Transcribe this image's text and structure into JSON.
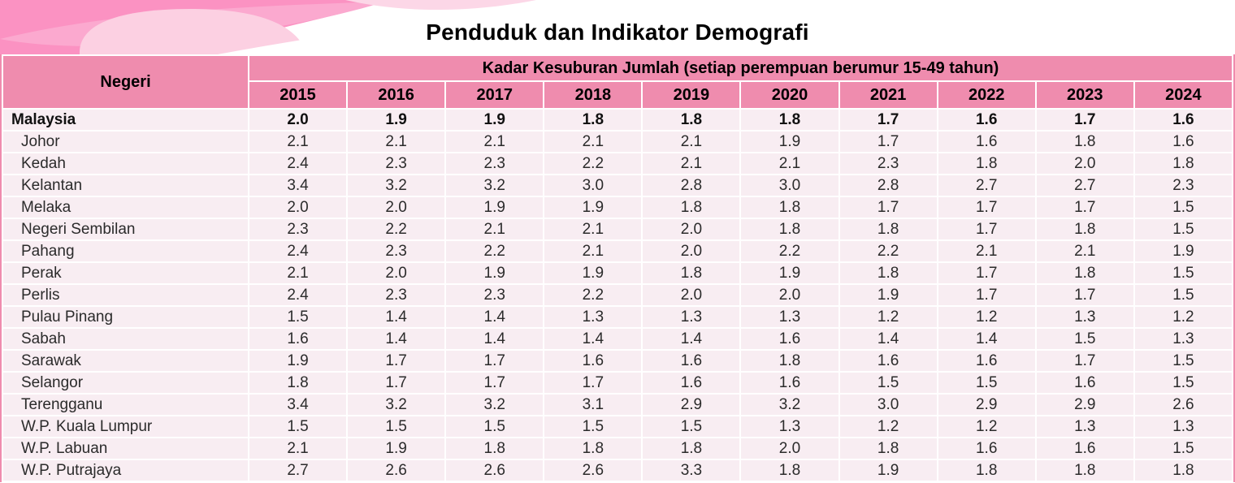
{
  "title": "Penduduk dan Indikator Demografi",
  "colors": {
    "header_pink": "#ef8cae",
    "row_pink": "#f8edf2",
    "banner_base_pink": "#fb92c2",
    "banner_mid_pink": "#fba9cf",
    "banner_light_pink": "#fcd0e2",
    "banner_petal_pink": "#fcd7e7"
  },
  "table": {
    "negeri_header": "Negeri",
    "group_header": "Kadar Kesuburan Jumlah (setiap perempuan berumur 15-49 tahun)",
    "years": [
      "2015",
      "2016",
      "2017",
      "2018",
      "2019",
      "2020",
      "2021",
      "2022",
      "2023",
      "2024"
    ],
    "rows": [
      {
        "negeri": "Malaysia",
        "total": true,
        "values": [
          "2.0",
          "1.9",
          "1.9",
          "1.8",
          "1.8",
          "1.8",
          "1.7",
          "1.6",
          "1.7",
          "1.6"
        ]
      },
      {
        "negeri": "Johor",
        "total": false,
        "values": [
          "2.1",
          "2.1",
          "2.1",
          "2.1",
          "2.1",
          "1.9",
          "1.7",
          "1.6",
          "1.8",
          "1.6"
        ]
      },
      {
        "negeri": "Kedah",
        "total": false,
        "values": [
          "2.4",
          "2.3",
          "2.3",
          "2.2",
          "2.1",
          "2.1",
          "2.3",
          "1.8",
          "2.0",
          "1.8"
        ]
      },
      {
        "negeri": "Kelantan",
        "total": false,
        "values": [
          "3.4",
          "3.2",
          "3.2",
          "3.0",
          "2.8",
          "3.0",
          "2.8",
          "2.7",
          "2.7",
          "2.3"
        ]
      },
      {
        "negeri": "Melaka",
        "total": false,
        "values": [
          "2.0",
          "2.0",
          "1.9",
          "1.9",
          "1.8",
          "1.8",
          "1.7",
          "1.7",
          "1.7",
          "1.5"
        ]
      },
      {
        "negeri": "Negeri Sembilan",
        "total": false,
        "values": [
          "2.3",
          "2.2",
          "2.1",
          "2.1",
          "2.0",
          "1.8",
          "1.8",
          "1.7",
          "1.8",
          "1.5"
        ]
      },
      {
        "negeri": "Pahang",
        "total": false,
        "values": [
          "2.4",
          "2.3",
          "2.2",
          "2.1",
          "2.0",
          "2.2",
          "2.2",
          "2.1",
          "2.1",
          "1.9"
        ]
      },
      {
        "negeri": "Perak",
        "total": false,
        "values": [
          "2.1",
          "2.0",
          "1.9",
          "1.9",
          "1.8",
          "1.9",
          "1.8",
          "1.7",
          "1.8",
          "1.5"
        ]
      },
      {
        "negeri": "Perlis",
        "total": false,
        "values": [
          "2.4",
          "2.3",
          "2.3",
          "2.2",
          "2.0",
          "2.0",
          "1.9",
          "1.7",
          "1.7",
          "1.5"
        ]
      },
      {
        "negeri": "Pulau Pinang",
        "total": false,
        "values": [
          "1.5",
          "1.4",
          "1.4",
          "1.3",
          "1.3",
          "1.3",
          "1.2",
          "1.2",
          "1.3",
          "1.2"
        ]
      },
      {
        "negeri": "Sabah",
        "total": false,
        "values": [
          "1.6",
          "1.4",
          "1.4",
          "1.4",
          "1.4",
          "1.6",
          "1.4",
          "1.4",
          "1.5",
          "1.3"
        ]
      },
      {
        "negeri": "Sarawak",
        "total": false,
        "values": [
          "1.9",
          "1.7",
          "1.7",
          "1.6",
          "1.6",
          "1.8",
          "1.6",
          "1.6",
          "1.7",
          "1.5"
        ]
      },
      {
        "negeri": "Selangor",
        "total": false,
        "values": [
          "1.8",
          "1.7",
          "1.7",
          "1.7",
          "1.6",
          "1.6",
          "1.5",
          "1.5",
          "1.6",
          "1.5"
        ]
      },
      {
        "negeri": "Terengganu",
        "total": false,
        "values": [
          "3.4",
          "3.2",
          "3.2",
          "3.1",
          "2.9",
          "3.2",
          "3.0",
          "2.9",
          "2.9",
          "2.6"
        ]
      },
      {
        "negeri": "W.P. Kuala Lumpur",
        "total": false,
        "values": [
          "1.5",
          "1.5",
          "1.5",
          "1.5",
          "1.5",
          "1.3",
          "1.2",
          "1.2",
          "1.3",
          "1.3"
        ]
      },
      {
        "negeri": "W.P. Labuan",
        "total": false,
        "values": [
          "2.1",
          "1.9",
          "1.8",
          "1.8",
          "1.8",
          "2.0",
          "1.8",
          "1.6",
          "1.6",
          "1.5"
        ]
      },
      {
        "negeri": "W.P. Putrajaya",
        "total": false,
        "values": [
          "2.7",
          "2.6",
          "2.6",
          "2.6",
          "3.3",
          "1.8",
          "1.9",
          "1.8",
          "1.8",
          "1.8"
        ]
      }
    ]
  }
}
